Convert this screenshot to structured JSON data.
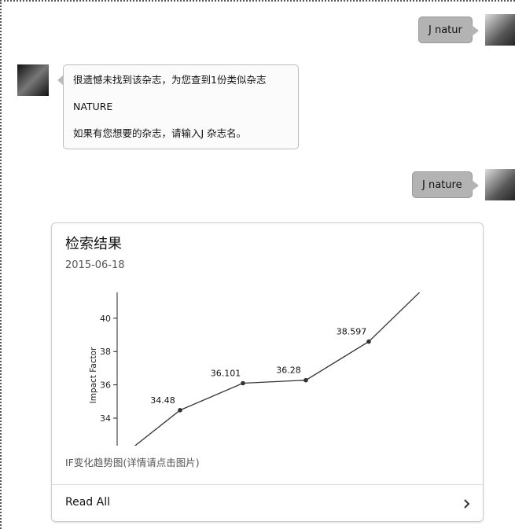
{
  "messages": [
    {
      "side": "right",
      "text": "J natur"
    },
    {
      "side": "left",
      "lines": [
        "很遗憾未找到该杂志，为您查到1份类似杂志",
        "NATURE",
        "如果有您想要的杂志，请输入J 杂志名。"
      ]
    },
    {
      "side": "right",
      "text": "J nature"
    }
  ],
  "card": {
    "title": "检索结果",
    "date": "2015-06-18",
    "caption": "IF变化趋势图(详情请点击图片)",
    "action": "Read All"
  },
  "chart_data": {
    "type": "line",
    "ylabel": "Impact Factor",
    "categories": [
      null,
      null,
      null,
      null,
      null,
      null
    ],
    "values": [
      31.5,
      34.48,
      36.101,
      36.28,
      38.597,
      42.26
    ],
    "ylim": [
      32.35,
      41.55
    ],
    "yticks": [
      34,
      36,
      38,
      40
    ],
    "color": "#333333"
  }
}
